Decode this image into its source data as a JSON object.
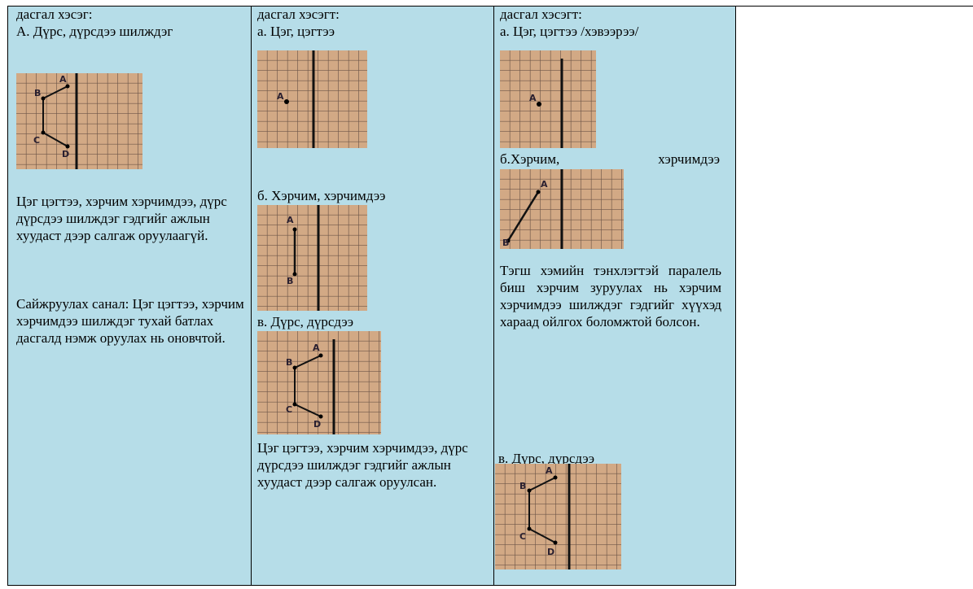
{
  "columns": [
    {
      "heading": "дасгал хэсэг:",
      "subtitle": "А. Дүрс, дүрсдээ шилждэг",
      "figure_labels": [
        "A",
        "B",
        "C",
        "D"
      ],
      "note": "Цэг цэгтээ, хэрчим хэрчимдээ, дүрс дүрсдээ шилждэг гэдгийг ажлын хуудаст дээр салгаж оруулаагүй.",
      "suggestion": "Сайжруулах санал: Цэг цэгтээ, хэрчим хэрчимдээ шилждэг тухай батлах дасгалд нэмж оруулах нь оновчтой."
    },
    {
      "heading": "дасгал хэсэгт:",
      "sections": [
        {
          "title": "а. Цэг, цэгтээ",
          "figure_labels": [
            "A"
          ]
        },
        {
          "title": "б. Хэрчим, хэрчимдээ",
          "figure_labels": [
            "A",
            "B"
          ]
        },
        {
          "title": "в. Дүрс, дүрсдээ",
          "figure_labels": [
            "A",
            "B",
            "C",
            "D"
          ]
        }
      ],
      "note": "Цэг цэгтээ, хэрчим хэрчимдээ, дүрс дүрсдээ шилждэг гэдгийг ажлын хуудаст дээр салгаж оруулсан."
    },
    {
      "heading": "дасгал хэсэгт:",
      "sections": [
        {
          "title": "а. Цэг, цэгтээ /хэвээрээ/",
          "figure_labels": [
            "A"
          ]
        },
        {
          "title": "б.Хэрчим, хэрчимдээ",
          "figure_labels": [
            "A",
            "B"
          ],
          "note": "Тэгш хэмийн тэнхлэгтэй паралель биш хэрчим зуруулах нь хэрчим хэрчимдээ шилждэг гэдгийг хүүхэд хараад ойлгох боломжтой болсон."
        },
        {
          "title": "в. Дүрс, дүрсдээ",
          "figure_labels": [
            "A",
            "B",
            "C",
            "D"
          ]
        }
      ]
    }
  ]
}
